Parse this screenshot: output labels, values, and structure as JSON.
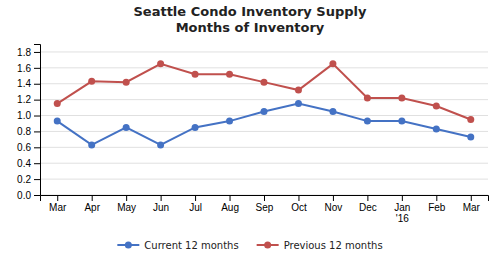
{
  "chart_data": {
    "type": "line",
    "title": "Seattle Condo Inventory Supply",
    "subtitle": "Months of Inventory",
    "categories": [
      "Mar",
      "Apr",
      "May",
      "Jun",
      "Jul",
      "Aug",
      "Sep",
      "Oct",
      "Nov",
      "Dec",
      "Jan\n'16",
      "Feb",
      "Mar"
    ],
    "series": [
      {
        "name": "Current 12 months",
        "color": "#4472C4",
        "marker": "circle",
        "values": [
          0.93,
          0.63,
          0.85,
          0.63,
          0.85,
          0.93,
          1.05,
          1.15,
          1.05,
          0.93,
          0.93,
          0.83,
          0.73
        ]
      },
      {
        "name": "Previous 12 months",
        "color": "#C0504D",
        "marker": "circle",
        "values": [
          1.15,
          1.43,
          1.42,
          1.65,
          1.52,
          1.52,
          1.42,
          1.32,
          1.65,
          1.22,
          1.22,
          1.12,
          0.95
        ]
      }
    ],
    "ylim": [
      0.0,
      1.9
    ],
    "yticks": [
      {
        "value": 0.0,
        "label": "0.0"
      },
      0.2,
      0.4,
      0.6,
      0.8,
      {
        "value": 1.0,
        "label": "1.0"
      },
      1.2,
      1.4,
      1.6,
      1.8
    ],
    "grid": true,
    "legend": "bottom"
  }
}
